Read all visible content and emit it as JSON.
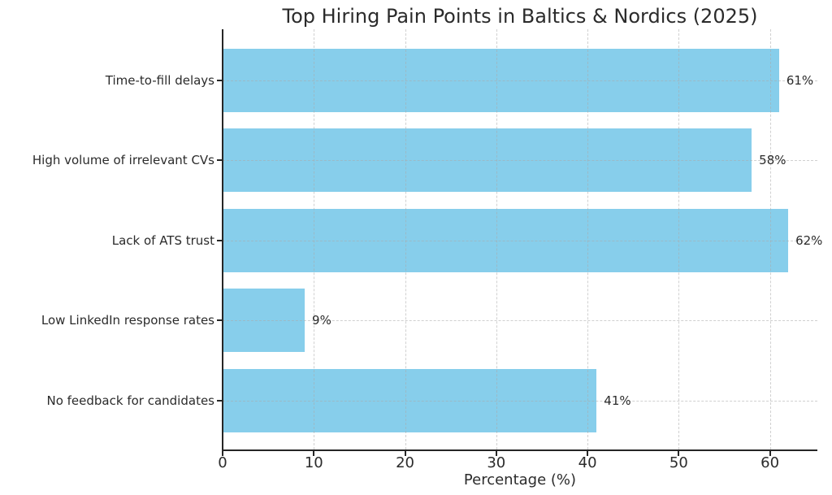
{
  "chart_data": {
    "type": "bar",
    "orientation": "horizontal",
    "title": "Top Hiring Pain Points in Baltics & Nordics (2025)",
    "xlabel": "Percentage (%)",
    "categories": [
      "Time-to-fill delays",
      "High volume of irrelevant CVs",
      "Lack of ATS trust",
      "Low LinkedIn response rates",
      "No feedback for candidates"
    ],
    "values": [
      61,
      58,
      62,
      9,
      41
    ],
    "value_labels": [
      "61%",
      "58%",
      "62%",
      "9%",
      "41%"
    ],
    "xticks": [
      0,
      10,
      20,
      30,
      40,
      50,
      60
    ],
    "xtick_labels": [
      "0",
      "10",
      "20",
      "30",
      "40",
      "50",
      "60"
    ],
    "xlim": [
      0,
      65.2
    ],
    "grid": "dashed, both axes, drawn over bars",
    "legend": "none",
    "colors": {
      "bar": "#87CEEB",
      "text": "#2b2b2b",
      "axis": "#262626",
      "grid": "#aaaaaa",
      "background": "#ffffff"
    }
  }
}
